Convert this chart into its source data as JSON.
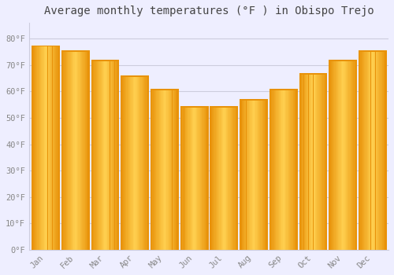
{
  "title": "Average monthly temperatures (°F ) in Obispo Trejo",
  "months": [
    "Jan",
    "Feb",
    "Mar",
    "Apr",
    "May",
    "Jun",
    "Jul",
    "Aug",
    "Sep",
    "Oct",
    "Nov",
    "Dec"
  ],
  "values": [
    77.5,
    75.5,
    72.0,
    66.0,
    61.0,
    54.5,
    54.5,
    57.0,
    61.0,
    67.0,
    72.0,
    75.5
  ],
  "bar_color_edge": "#E8920A",
  "bar_color_center": "#FFD050",
  "bar_color_main": "#FFAA15",
  "background_color": "#EEEEFF",
  "plot_bg_color": "#EEEEFF",
  "grid_color": "#CCCCDD",
  "text_color": "#888888",
  "title_color": "#444444",
  "ylim": [
    0,
    86
  ],
  "yticks": [
    0,
    10,
    20,
    30,
    40,
    50,
    60,
    70,
    80
  ],
  "ytick_labels": [
    "0°F",
    "10°F",
    "20°F",
    "30°F",
    "40°F",
    "50°F",
    "60°F",
    "70°F",
    "80°F"
  ],
  "title_fontsize": 10,
  "tick_fontsize": 7.5,
  "bar_width": 0.92
}
